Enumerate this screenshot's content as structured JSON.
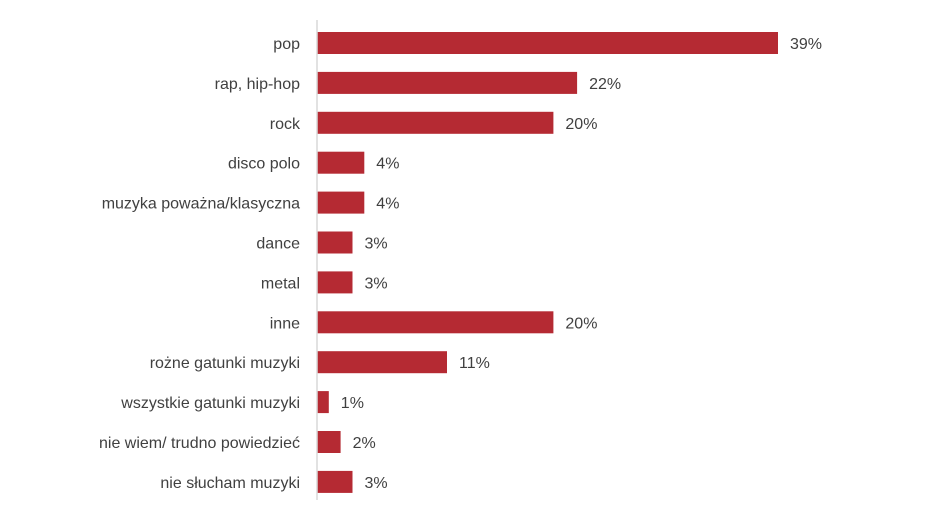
{
  "chart_data": {
    "type": "bar",
    "orientation": "horizontal",
    "categories": [
      "pop",
      "rap, hip-hop",
      "rock",
      "disco polo",
      "muzyka poważna/klasyczna",
      "dance",
      "metal",
      "inne",
      "rożne gatunki muzyki",
      "wszystkie gatunki muzyki",
      "nie wiem/ trudno powiedzieć",
      "nie słucham muzyki"
    ],
    "values": [
      39,
      22,
      20,
      4,
      4,
      3,
      3,
      20,
      11,
      1,
      2,
      3
    ],
    "value_labels": [
      "39%",
      "22%",
      "20%",
      "4%",
      "4%",
      "3%",
      "3%",
      "20%",
      "11%",
      "1%",
      "2%",
      "3%"
    ],
    "unit": "%",
    "xlim": [
      0,
      39
    ],
    "grid": false,
    "legend": "none",
    "title": "",
    "xlabel": "",
    "ylabel": "",
    "bar_color": "#b52a33",
    "axis_color": "#d9d9d9",
    "text_color": "#404040"
  }
}
